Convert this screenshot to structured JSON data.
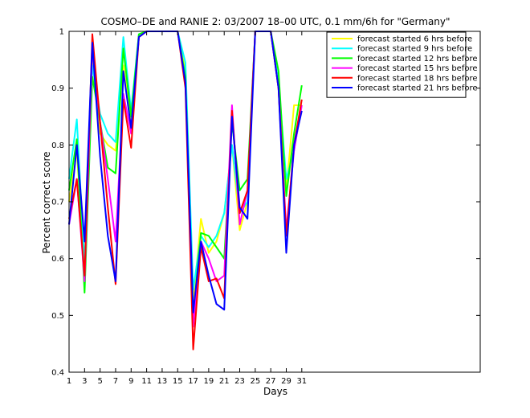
{
  "chart_data": {
    "type": "line",
    "title": "COSMO–DE and RANIE 2: 03/2007 18–00 UTC, 0.1 mm/6h for \"Germany\"",
    "xlabel": "Days",
    "ylabel": "Percent correct score",
    "xlim": [
      1,
      54
    ],
    "ylim": [
      0.4,
      1.0
    ],
    "xticks": [
      1,
      3,
      5,
      7,
      9,
      11,
      13,
      15,
      17,
      19,
      21,
      23,
      25,
      27,
      29,
      31
    ],
    "yticks": [
      0.4,
      0.5,
      0.6,
      0.7,
      0.8,
      0.9,
      1.0
    ],
    "ytick_labels": [
      "0.4",
      "0.5",
      "0.6",
      "0.7",
      "0.8",
      "0.9",
      "1"
    ],
    "grid": false,
    "legend_position": "top-right",
    "x": [
      1,
      2,
      3,
      4,
      5,
      6,
      7,
      8,
      9,
      10,
      11,
      12,
      13,
      14,
      15,
      16,
      17,
      18,
      19,
      20,
      21,
      22,
      23,
      24,
      25,
      26,
      27,
      28,
      29,
      30,
      31
    ],
    "series": [
      {
        "name": "forecast started 6 hrs before",
        "color": "#ffff00",
        "values": [
          0.7,
          0.79,
          0.58,
          0.95,
          0.82,
          0.8,
          0.79,
          0.94,
          0.84,
          0.99,
          1.0,
          1.0,
          1.0,
          1.0,
          1.0,
          0.93,
          0.52,
          0.67,
          0.61,
          0.63,
          0.68,
          0.8,
          0.65,
          0.7,
          1.0,
          1.0,
          1.0,
          0.9,
          0.72,
          0.87,
          0.87
        ]
      },
      {
        "name": "forecast started 9 hrs before",
        "color": "#00ffff",
        "values": [
          0.74,
          0.845,
          0.59,
          0.94,
          0.855,
          0.82,
          0.805,
          0.99,
          0.86,
          0.995,
          1.0,
          1.0,
          1.0,
          1.0,
          1.0,
          0.945,
          0.545,
          0.64,
          0.62,
          0.64,
          0.68,
          0.8,
          0.68,
          0.7,
          1.0,
          1.0,
          1.0,
          0.91,
          0.74,
          0.79,
          0.87
        ]
      },
      {
        "name": "forecast started 12 hrs before",
        "color": "#00ff00",
        "values": [
          0.72,
          0.81,
          0.54,
          0.92,
          0.84,
          0.76,
          0.75,
          0.97,
          0.85,
          0.995,
          1.0,
          1.0,
          1.0,
          1.0,
          1.0,
          0.92,
          0.5,
          0.645,
          0.64,
          0.62,
          0.6,
          0.84,
          0.72,
          0.74,
          1.0,
          1.0,
          1.0,
          0.93,
          0.71,
          0.82,
          0.905
        ]
      },
      {
        "name": "forecast started 15 hrs before",
        "color": "#ff00ff",
        "values": [
          0.66,
          0.74,
          0.56,
          0.97,
          0.84,
          0.74,
          0.63,
          0.89,
          0.82,
          0.99,
          1.0,
          1.0,
          1.0,
          1.0,
          1.0,
          0.91,
          0.48,
          0.63,
          0.6,
          0.56,
          0.57,
          0.87,
          0.66,
          0.72,
          1.0,
          1.0,
          1.0,
          0.9,
          0.65,
          0.79,
          0.87
        ]
      },
      {
        "name": "forecast started 18 hrs before",
        "color": "#ff0000",
        "values": [
          0.67,
          0.74,
          0.57,
          0.995,
          0.84,
          0.69,
          0.555,
          0.88,
          0.795,
          0.99,
          1.0,
          1.0,
          1.0,
          1.0,
          1.0,
          0.9,
          0.44,
          0.62,
          0.56,
          0.565,
          0.53,
          0.86,
          0.68,
          0.72,
          1.0,
          1.0,
          1.0,
          0.9,
          0.64,
          0.8,
          0.88
        ]
      },
      {
        "name": "forecast started 21 hrs before",
        "color": "#0000ff",
        "values": [
          0.66,
          0.8,
          0.63,
          0.98,
          0.78,
          0.64,
          0.56,
          0.93,
          0.83,
          0.99,
          1.0,
          1.0,
          1.0,
          1.0,
          1.0,
          0.91,
          0.505,
          0.63,
          0.57,
          0.52,
          0.51,
          0.85,
          0.69,
          0.67,
          1.0,
          1.0,
          1.0,
          0.9,
          0.61,
          0.8,
          0.86
        ]
      }
    ]
  }
}
